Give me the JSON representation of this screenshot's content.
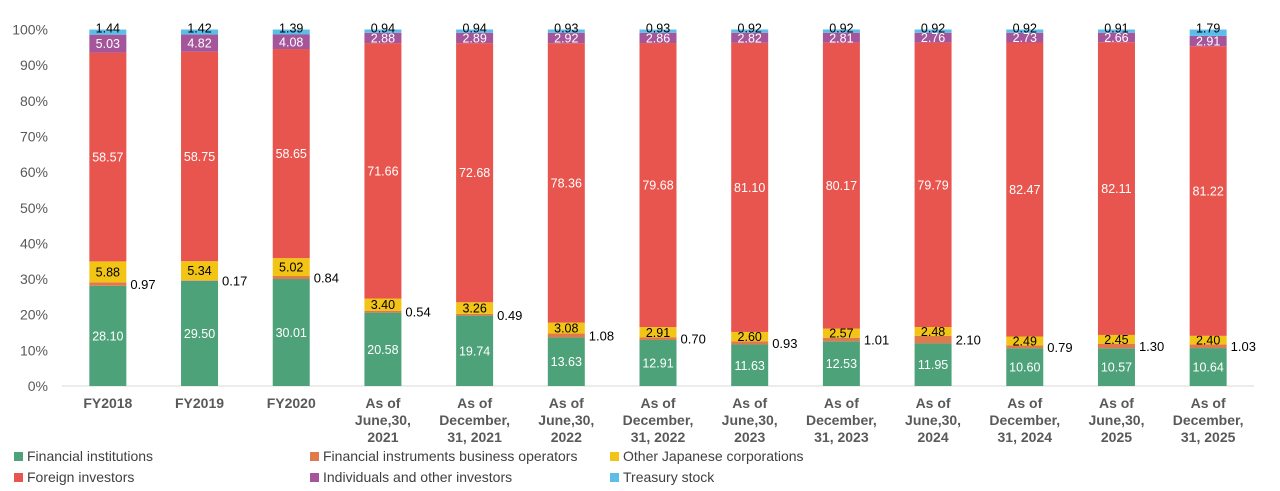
{
  "chart_data": {
    "type": "bar",
    "stacked": true,
    "percent_axis": true,
    "ylim": [
      0,
      100
    ],
    "yticks": [
      "0%",
      "10%",
      "20%",
      "30%",
      "40%",
      "50%",
      "60%",
      "70%",
      "80%",
      "90%",
      "100%"
    ],
    "grid": false,
    "legend_position": "bottom",
    "categories": [
      [
        "FY2018"
      ],
      [
        "FY2019"
      ],
      [
        "FY2020"
      ],
      [
        "As of",
        "June,30,",
        "2021"
      ],
      [
        "As of",
        "December,",
        "31, 2021"
      ],
      [
        "As of",
        "June,30,",
        "2022"
      ],
      [
        "As of",
        "December,",
        "31, 2022"
      ],
      [
        "As of",
        "June,30,",
        "2023"
      ],
      [
        "As of",
        "December,",
        "31, 2023"
      ],
      [
        "As of",
        "June,30,",
        "2024"
      ],
      [
        "As of",
        "December,",
        "31, 2024"
      ],
      [
        "As of",
        "June,30,",
        "2025"
      ],
      [
        "As of",
        "December,",
        "31, 2025"
      ]
    ],
    "series": [
      {
        "name": "Financial institutions",
        "color": "#4ea27a",
        "label_color": "#ffffff",
        "values": [
          28.1,
          29.5,
          30.01,
          20.58,
          19.74,
          13.63,
          12.91,
          11.63,
          12.53,
          11.95,
          10.6,
          10.57,
          10.64
        ],
        "labels": [
          "28.10",
          "29.50",
          "30.01",
          "20.58",
          "19.74",
          "13.63",
          "12.91",
          "11.63",
          "12.53",
          "11.95",
          "10.60",
          "10.57",
          "10.64"
        ]
      },
      {
        "name": "Financial instruments business operators",
        "color": "#e07a4a",
        "label_color": "#000000",
        "label_outside": true,
        "values": [
          0.97,
          0.17,
          0.84,
          0.54,
          0.49,
          1.08,
          0.7,
          0.93,
          1.01,
          2.1,
          0.79,
          1.3,
          1.03
        ],
        "labels": [
          "0.97",
          "0.17",
          "0.84",
          "0.54",
          "0.49",
          "1.08",
          "0.70",
          "0.93",
          "1.01",
          "2.10",
          "0.79",
          "1.30",
          "1.03"
        ]
      },
      {
        "name": "Other Japanese corporations",
        "color": "#f2c416",
        "label_color": "#000000",
        "values": [
          5.88,
          5.34,
          5.02,
          3.4,
          3.26,
          3.08,
          2.91,
          2.6,
          2.57,
          2.48,
          2.49,
          2.45,
          2.4
        ],
        "labels": [
          "5.88",
          "5.34",
          "5.02",
          "3.40",
          "3.26",
          "3.08",
          "2.91",
          "2.60",
          "2.57",
          "2.48",
          "2.49",
          "2.45",
          "2.40"
        ]
      },
      {
        "name": "Foreign investors",
        "color": "#e8554e",
        "label_color": "#ffffff",
        "values": [
          58.57,
          58.75,
          58.65,
          71.66,
          72.68,
          78.36,
          79.68,
          81.1,
          80.17,
          79.79,
          82.47,
          82.11,
          81.22
        ],
        "labels": [
          "58.57",
          "58.75",
          "58.65",
          "71.66",
          "72.68",
          "78.36",
          "79.68",
          "81.10",
          "80.17",
          "79.79",
          "82.47",
          "82.11",
          "81.22"
        ]
      },
      {
        "name": "Individuals and other investors",
        "color": "#a5559a",
        "label_color": "#ffffff",
        "values": [
          5.03,
          4.82,
          4.08,
          2.88,
          2.89,
          2.92,
          2.86,
          2.82,
          2.81,
          2.76,
          2.73,
          2.66,
          2.91
        ],
        "labels": [
          "5.03",
          "4.82",
          "4.08",
          "2.88",
          "2.89",
          "2.92",
          "2.86",
          "2.82",
          "2.81",
          "2.76",
          "2.73",
          "2.66",
          "2.91"
        ]
      },
      {
        "name": "Treasury stock",
        "color": "#5bbde8",
        "label_color": "#000000",
        "values": [
          1.44,
          1.42,
          1.39,
          0.94,
          0.94,
          0.93,
          0.93,
          0.92,
          0.92,
          0.92,
          0.92,
          0.91,
          1.79
        ],
        "labels": [
          "1.44",
          "1.42",
          "1.39",
          "0.94",
          "0.94",
          "0.93",
          "0.93",
          "0.92",
          "0.92",
          "0.92",
          "0.92",
          "0.91",
          "1.79"
        ]
      }
    ]
  }
}
